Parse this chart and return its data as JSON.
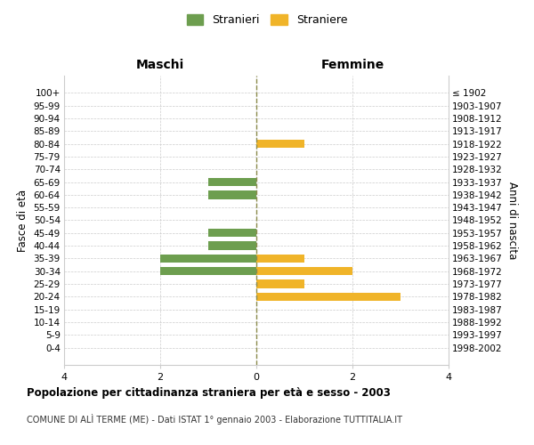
{
  "age_groups": [
    "100+",
    "95-99",
    "90-94",
    "85-89",
    "80-84",
    "75-79",
    "70-74",
    "65-69",
    "60-64",
    "55-59",
    "50-54",
    "45-49",
    "40-44",
    "35-39",
    "30-34",
    "25-29",
    "20-24",
    "15-19",
    "10-14",
    "5-9",
    "0-4"
  ],
  "birth_years": [
    "≤ 1902",
    "1903-1907",
    "1908-1912",
    "1913-1917",
    "1918-1922",
    "1923-1927",
    "1928-1932",
    "1933-1937",
    "1938-1942",
    "1943-1947",
    "1948-1952",
    "1953-1957",
    "1958-1962",
    "1963-1967",
    "1968-1972",
    "1973-1977",
    "1978-1982",
    "1983-1987",
    "1988-1992",
    "1993-1997",
    "1998-2002"
  ],
  "maschi": [
    0,
    0,
    0,
    0,
    0,
    0,
    0,
    1,
    1,
    0,
    0,
    1,
    1,
    2,
    2,
    0,
    0,
    0,
    0,
    0,
    0
  ],
  "femmine": [
    0,
    0,
    0,
    0,
    1,
    0,
    0,
    0,
    0,
    0,
    0,
    0,
    0,
    1,
    2,
    1,
    3,
    0,
    0,
    0,
    0
  ],
  "maschi_color": "#6d9e4f",
  "femmine_color": "#f0b429",
  "background_color": "#ffffff",
  "grid_color": "#cccccc",
  "center_line_color": "#8b8b4b",
  "title": "Popolazione per cittadinanza straniera per età e sesso - 2003",
  "subtitle": "COMUNE DI ALÌ TERME (ME) - Dati ISTAT 1° gennaio 2003 - Elaborazione TUTTITALIA.IT",
  "legend_stranieri": "Stranieri",
  "legend_straniere": "Straniere",
  "xlabel_left": "Maschi",
  "xlabel_right": "Femmine",
  "ylabel_left": "Fasce di età",
  "ylabel_right": "Anni di nascita",
  "xlim": 4
}
